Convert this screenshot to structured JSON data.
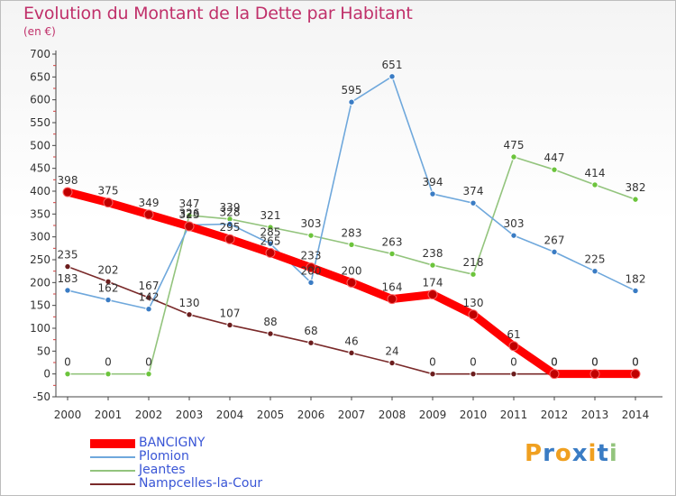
{
  "title": "Evolution du Montant de la Dette par Habitant",
  "subtitle": "(en €)",
  "chart_data": {
    "type": "line",
    "title": "Evolution du Montant de la Dette par Habitant",
    "subtitle": "(en €)",
    "ylim": [
      -50,
      700
    ],
    "y_ticks": [
      -50,
      0,
      50,
      100,
      150,
      200,
      250,
      300,
      350,
      400,
      450,
      500,
      550,
      600,
      650,
      700
    ],
    "x": [
      "2000",
      "2001",
      "2002",
      "2003",
      "2004",
      "2005",
      "2006",
      "2007",
      "2008",
      "2009",
      "2010",
      "2011",
      "2012",
      "2013",
      "2014"
    ],
    "grid": false,
    "legend_position": "bottom-left",
    "series": [
      {
        "name": "BANCIGNY",
        "color": "#ff0000",
        "marker": "#c00000",
        "values": [
          398,
          375,
          349,
          323,
          295,
          265,
          233,
          200,
          164,
          174,
          130,
          61,
          0,
          0,
          0
        ]
      },
      {
        "name": "Plomion",
        "color": "#6fa8dc",
        "marker": "#3a7cc4",
        "values": [
          183,
          162,
          142,
          326,
          328,
          285,
          200,
          595,
          651,
          394,
          374,
          303,
          267,
          225,
          182
        ]
      },
      {
        "name": "Jeantes",
        "color": "#93c47d",
        "marker": "#6cc43c",
        "values": [
          0,
          0,
          0,
          347,
          339,
          321,
          303,
          283,
          263,
          238,
          218,
          475,
          447,
          414,
          382
        ]
      },
      {
        "name": "Nampcelles-la-Cour",
        "color": "#7a2a2a",
        "marker": "#6b1d1d",
        "values": [
          235,
          202,
          167,
          130,
          107,
          88,
          68,
          46,
          24,
          0,
          0,
          0,
          0,
          0,
          0
        ]
      }
    ],
    "data_labels": [
      [
        "398",
        "375",
        "349",
        "323",
        "295",
        "265",
        "233",
        "200",
        "164",
        "174",
        "130",
        "61",
        "0",
        "0",
        "0"
      ],
      [
        "183",
        "162",
        "142",
        "326",
        "328",
        "285",
        "200",
        "595",
        "651",
        "394",
        "374",
        "303",
        "267",
        "225",
        "182"
      ],
      [
        "0",
        "0",
        "0",
        "347",
        "339",
        "321",
        "303",
        "283",
        "263",
        "238",
        "218",
        "475",
        "447",
        "414",
        "382"
      ],
      [
        "235",
        "202",
        "167",
        "130",
        "107",
        "88",
        "68",
        "46",
        "24",
        "0",
        "0",
        "0",
        "0",
        "0",
        "0"
      ]
    ]
  },
  "logo": {
    "text": "Proxiti",
    "colors": [
      "#f0a020",
      "#3a7cc4",
      "#f0a020",
      "#3a7cc4",
      "#f0a020",
      "#3a7cc4",
      "#93c47d"
    ]
  }
}
